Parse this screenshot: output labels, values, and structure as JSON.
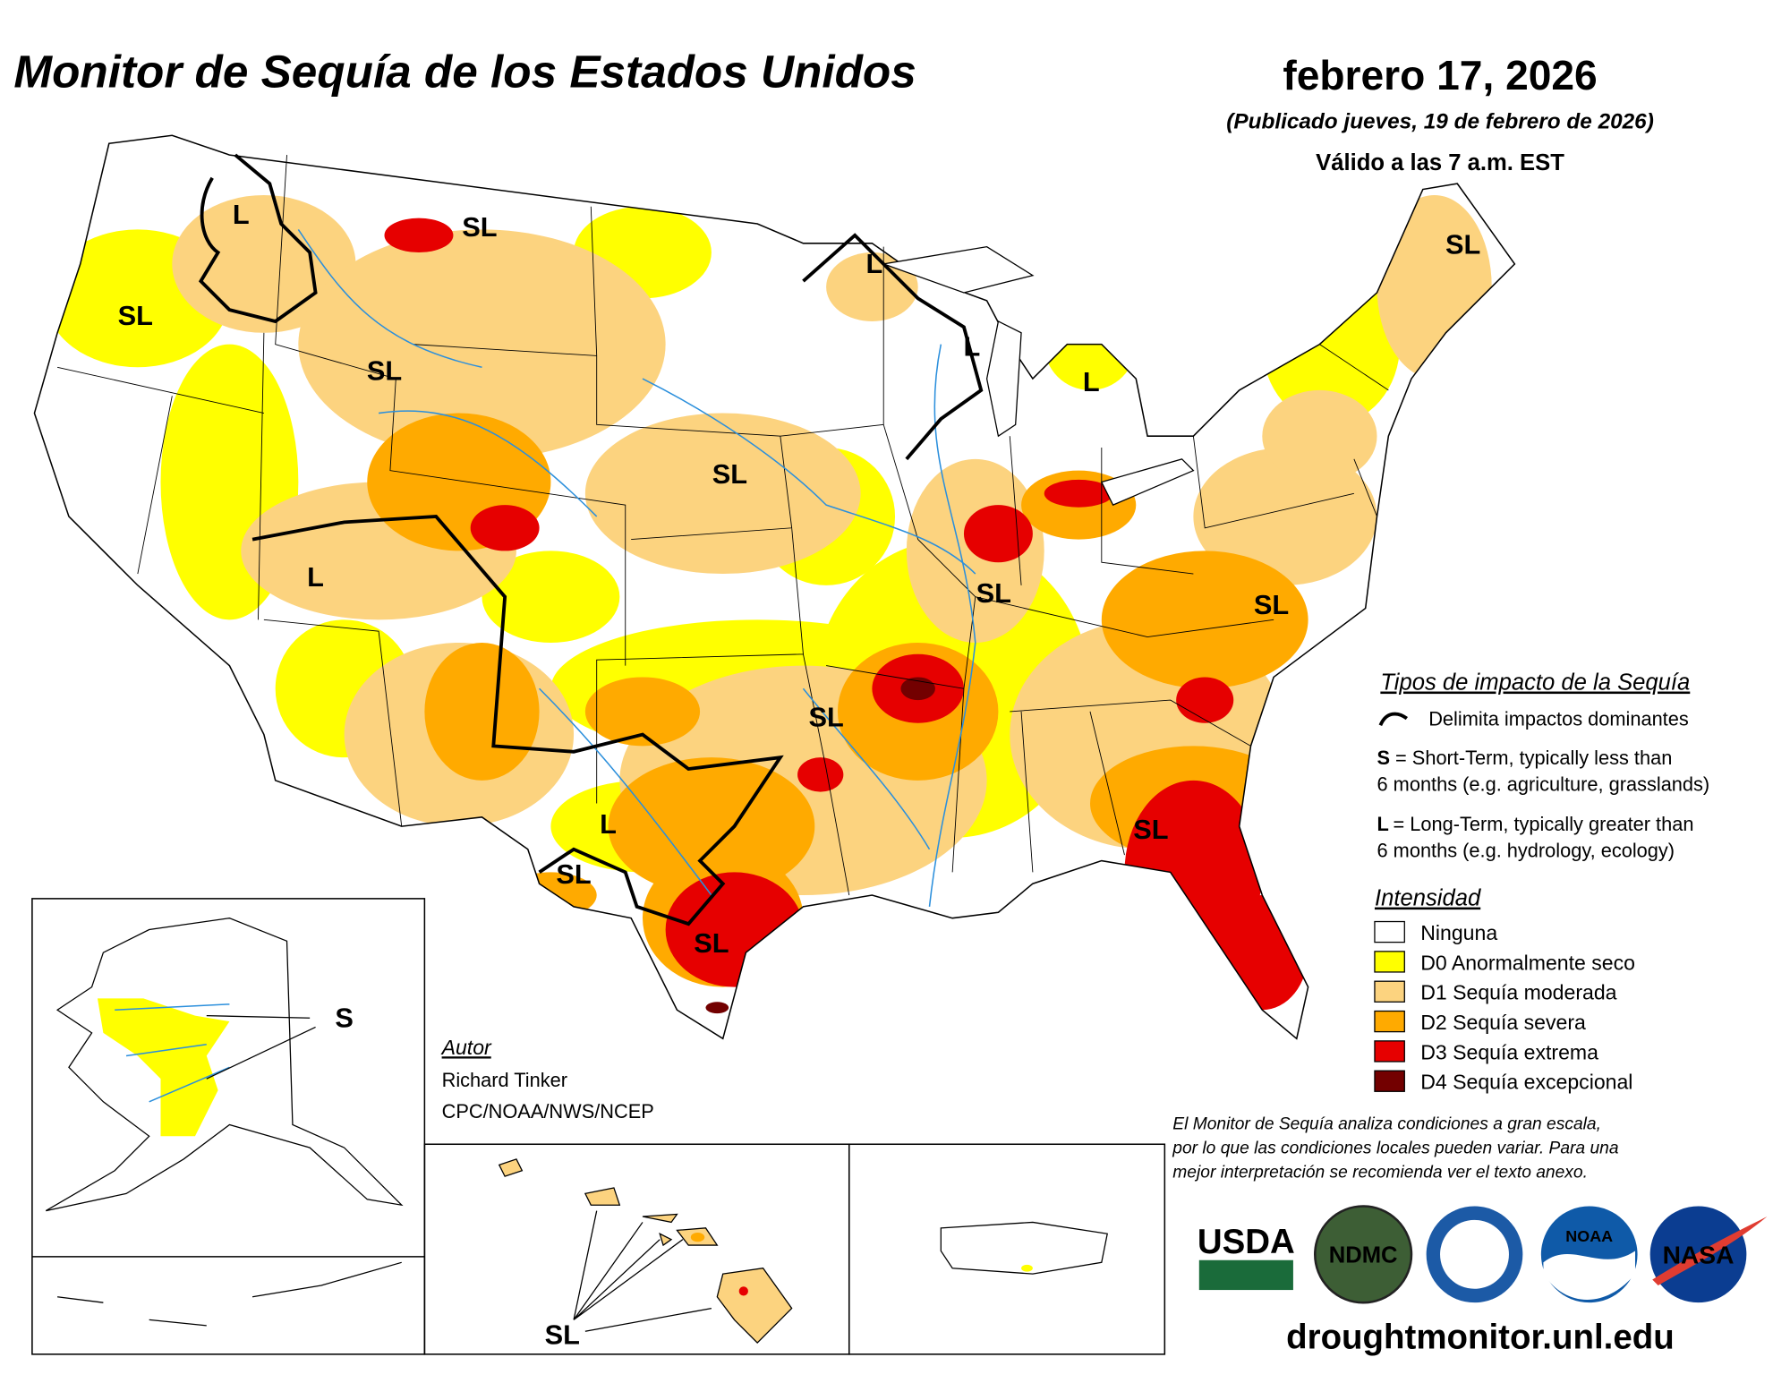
{
  "header": {
    "title": "Monitor de Sequía de los Estados Unidos",
    "date": "febrero 17, 2026",
    "published": "(Publicado jueves, 19 de febrero de 2026)",
    "valid": "Válido a las 7 a.m. EST"
  },
  "map_labels": [
    "L",
    "SL",
    "SL",
    "SL",
    "L",
    "L",
    "L",
    "SL",
    "SL",
    "L",
    "SL",
    "SL",
    "SL",
    "L",
    "SL",
    "SL",
    "SL",
    "S",
    "SL"
  ],
  "legend": {
    "impact_title": "Tipos de impacto de la Sequía",
    "impact_line": "Delimita impactos dominantes",
    "short_key": "S",
    "short_text": "= Short-Term, typically less than",
    "short_text_2": "6 months (e.g. agriculture, grasslands)",
    "long_key": "L",
    "long_text": "= Long-Term, typically greater than",
    "long_text_2": "6 months (e.g. hydrology, ecology)",
    "intensity_title": "Intensidad",
    "categories": [
      {
        "label": "Ninguna",
        "color": "#ffffff"
      },
      {
        "label": "D0 Anormalmente seco",
        "color": "#ffff00"
      },
      {
        "label": "D1 Sequía moderada",
        "color": "#fcd37f"
      },
      {
        "label": "D2 Sequía severa",
        "color": "#ffaa00"
      },
      {
        "label": "D3 Sequía extrema",
        "color": "#e60000"
      },
      {
        "label": "D4 Sequía excepcional",
        "color": "#730000"
      }
    ]
  },
  "author": {
    "title": "Autor",
    "name": "Richard Tinker",
    "org": "CPC/NOAA/NWS/NCEP"
  },
  "disclaimer": [
    "El Monitor de Sequía analiza condiciones a gran escala,",
    "por lo que las condiciones locales pueden variar. Para una",
    "mejor interpretación se recomienda ver el texto anexo."
  ],
  "logos": [
    "USDA",
    "NDMC",
    "NOAA",
    "NASA"
  ],
  "url": "droughtmonitor.unl.edu"
}
